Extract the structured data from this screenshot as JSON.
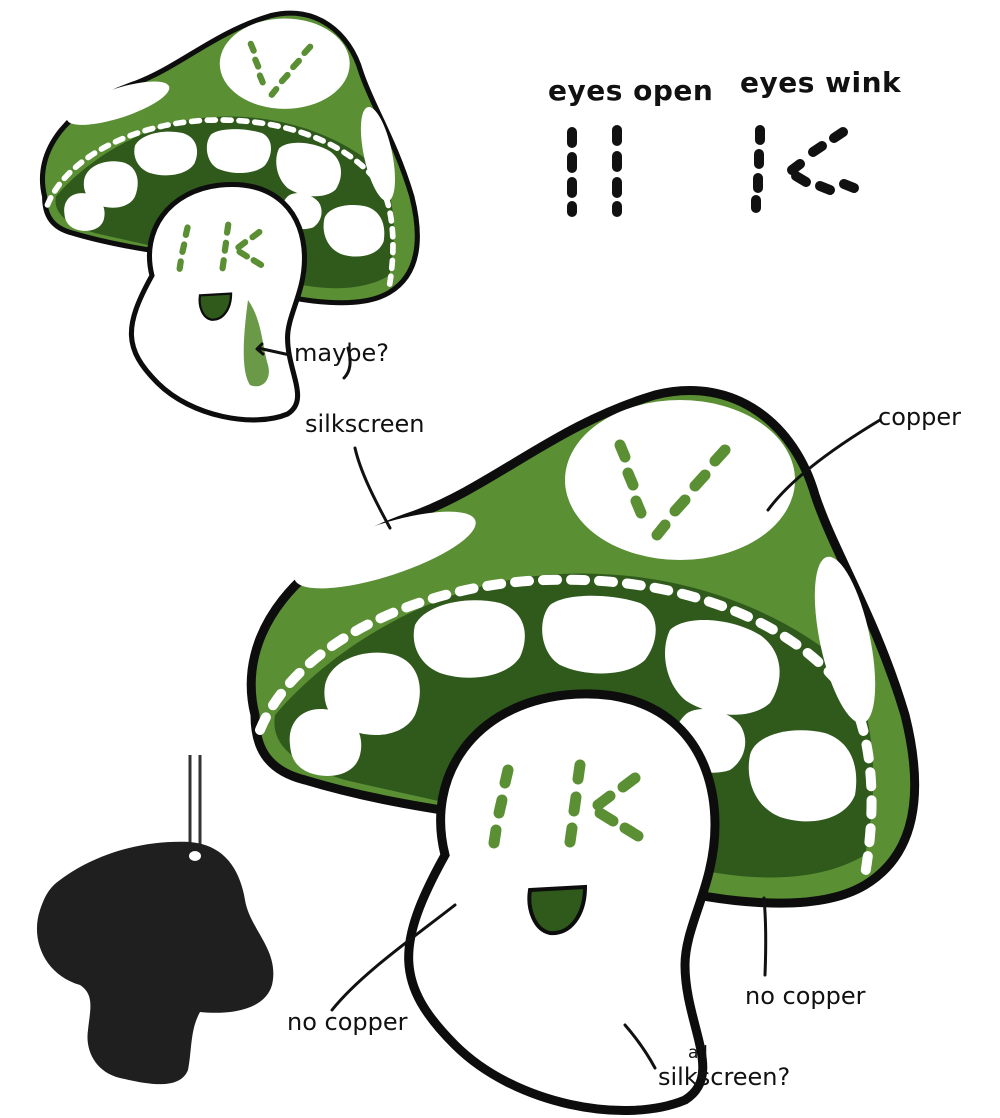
{
  "headers": {
    "eyes_open": "eyes open",
    "eyes_wink": "eyes wink"
  },
  "labels": {
    "maybe": "maybe?",
    "silkscreen": "silkscreen",
    "copper": "copper",
    "no_copper_mouth": "no copper",
    "no_copper_cap": "no copper",
    "all": "all",
    "silkscreen_q": "silkscreen?"
  },
  "colors": {
    "copper_green": "#5a8f34",
    "dark_green": "#2f5a1c",
    "outline": "#0d0d0d",
    "silhouette": "#1f1f1f",
    "white": "#ffffff"
  },
  "icons": {
    "small_mushroom": "mushroom-icon",
    "large_mushroom": "mushroom-icon",
    "silhouette": "mushroom-silhouette-icon",
    "open_eyes": "open-eyes-icon",
    "wink_eyes": "wink-eyes-icon"
  }
}
